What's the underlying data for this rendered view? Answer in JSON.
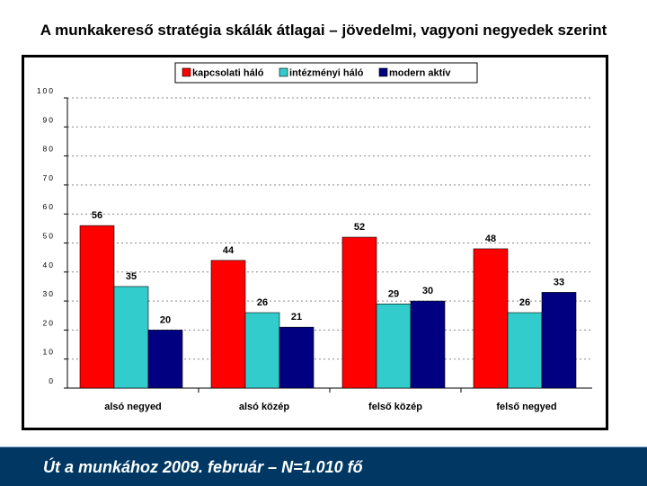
{
  "title": "A munkakereső stratégia skálák átlagai – jövedelmi, vagyoni negyedek szerint",
  "footer": "Út a munkához 2009. február – N=1.010 fő",
  "chart_data": {
    "type": "bar",
    "categories": [
      "alsó negyed",
      "alsó közép",
      "felső közép",
      "felső negyed"
    ],
    "series": [
      {
        "name": "kapcsolati háló",
        "values": [
          56,
          44,
          52,
          48
        ],
        "color": "#ff0000"
      },
      {
        "name": "intézményi háló",
        "values": [
          35,
          26,
          29,
          26
        ],
        "color": "#33cccc"
      },
      {
        "name": "modern aktív",
        "values": [
          20,
          21,
          30,
          33
        ],
        "color": "#000080"
      }
    ],
    "ylim": [
      0,
      100
    ],
    "yticks": [
      "0",
      "10",
      "20",
      "30",
      "40",
      "50",
      "60",
      "70",
      "80",
      "90",
      "100"
    ],
    "grid": true,
    "legend": "top"
  }
}
